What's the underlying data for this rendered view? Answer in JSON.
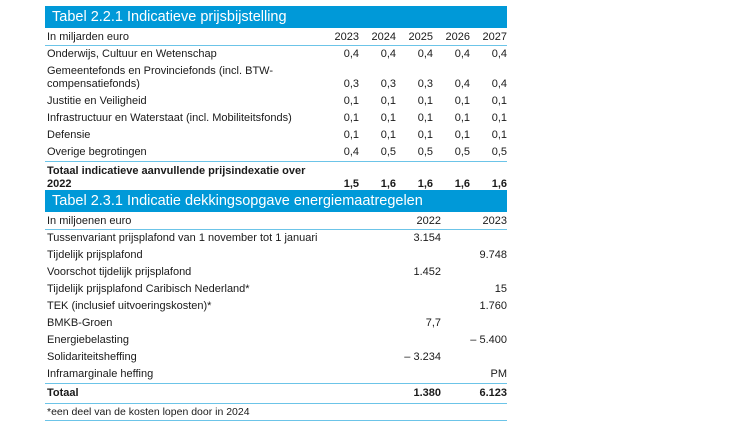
{
  "table1": {
    "title": "Tabel 2.2.1 Indicatieve prijsbijstelling",
    "unit": "In miljarden euro",
    "years": [
      "2023",
      "2024",
      "2025",
      "2026",
      "2027"
    ],
    "rows": [
      {
        "label": "Onderwijs, Cultuur en Wetenschap",
        "values": [
          "0,4",
          "0,4",
          "0,4",
          "0,4",
          "0,4"
        ]
      },
      {
        "label": "Gemeentefonds en Provinciefonds (incl. BTW-compensatiefonds)",
        "values": [
          "0,3",
          "0,3",
          "0,3",
          "0,4",
          "0,4"
        ]
      },
      {
        "label": "Justitie en Veiligheid",
        "values": [
          "0,1",
          "0,1",
          "0,1",
          "0,1",
          "0,1"
        ]
      },
      {
        "label": "Infrastructuur en Waterstaat (incl. Mobiliteitsfonds)",
        "values": [
          "0,1",
          "0,1",
          "0,1",
          "0,1",
          "0,1"
        ]
      },
      {
        "label": "Defensie",
        "values": [
          "0,1",
          "0,1",
          "0,1",
          "0,1",
          "0,1"
        ]
      },
      {
        "label": "Overige begrotingen",
        "values": [
          "0,4",
          "0,5",
          "0,5",
          "0,5",
          "0,5"
        ]
      }
    ],
    "total": {
      "label": "Totaal indicatieve aanvullende prijsindexatie over 2022",
      "values": [
        "1,5",
        "1,6",
        "1,6",
        "1,6",
        "1,6"
      ]
    }
  },
  "table2": {
    "title": "Tabel 2.3.1 Indicatie dekkingsopgave energiemaatregelen",
    "unit": "In miljoenen euro",
    "years": [
      "2022",
      "2023"
    ],
    "rows": [
      {
        "label": "Tussenvariant prijsplafond van 1 november tot 1 januari",
        "values": [
          "3.154",
          ""
        ]
      },
      {
        "label": "Tijdelijk prijsplafond",
        "values": [
          "",
          "9.748"
        ]
      },
      {
        "label": "Voorschot tijdelijk prijsplafond",
        "values": [
          "1.452",
          ""
        ]
      },
      {
        "label": "Tijdelijk prijsplafond Caribisch Nederland*",
        "values": [
          "",
          "15"
        ]
      },
      {
        "label": "TEK (inclusief uitvoeringskosten)*",
        "values": [
          "",
          "1.760"
        ]
      },
      {
        "label": "BMKB-Groen",
        "values": [
          "7,7",
          ""
        ]
      },
      {
        "label": "Energiebelasting",
        "values": [
          "",
          "– 5.400"
        ]
      },
      {
        "label": "Solidariteitsheffing",
        "values": [
          "– 3.234",
          ""
        ]
      },
      {
        "label": "Inframarginale heffing",
        "values": [
          "",
          "PM"
        ]
      }
    ],
    "total": {
      "label": "Totaal",
      "values": [
        "1.380",
        "6.123"
      ]
    },
    "footnote": "*een deel van de kosten lopen door in 2024"
  }
}
